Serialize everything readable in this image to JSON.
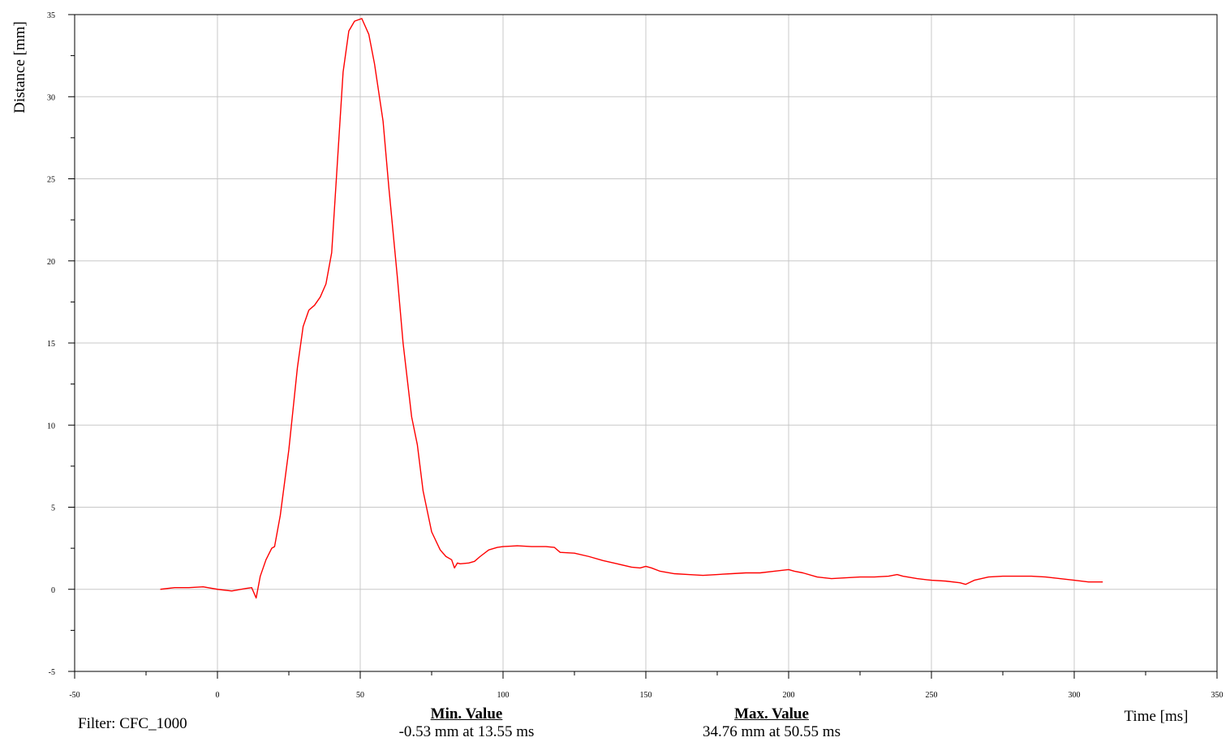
{
  "chart_data": {
    "type": "line",
    "title": "",
    "xlabel": "Time [ms]",
    "ylabel": "Distance [mm]",
    "xlim": [
      -50,
      350
    ],
    "ylim": [
      -5,
      35
    ],
    "x_ticks": [
      -50,
      0,
      50,
      100,
      150,
      200,
      250,
      300,
      350
    ],
    "y_ticks": [
      -5,
      0,
      5,
      10,
      15,
      20,
      25,
      30,
      35
    ],
    "grid": true,
    "line_color": "#ff0000",
    "series": [
      {
        "x": [
          -20,
          -15,
          -10,
          -5,
          0,
          5,
          10,
          12,
          13.55,
          15,
          17,
          19,
          20,
          22,
          25,
          28,
          30,
          32,
          34,
          36,
          38,
          40,
          42,
          44,
          46,
          48,
          50.55,
          53,
          55,
          58,
          60,
          63,
          65,
          68,
          70,
          72,
          75,
          78,
          80,
          82,
          83,
          84,
          85,
          88,
          90,
          92,
          95,
          98,
          100,
          105,
          110,
          115,
          118,
          120,
          125,
          130,
          135,
          140,
          145,
          148,
          150,
          152,
          155,
          160,
          165,
          170,
          175,
          180,
          185,
          190,
          195,
          200,
          202,
          205,
          210,
          215,
          220,
          225,
          230,
          235,
          238,
          240,
          245,
          250,
          255,
          260,
          262,
          265,
          270,
          275,
          280,
          285,
          290,
          295,
          300,
          305,
          310
        ],
        "y": [
          0.0,
          0.1,
          0.1,
          0.15,
          0.0,
          -0.1,
          0.05,
          0.1,
          -0.53,
          0.8,
          1.8,
          2.5,
          2.6,
          4.5,
          8.5,
          13.5,
          16.0,
          17.0,
          17.3,
          17.8,
          18.6,
          20.5,
          26.0,
          31.5,
          34.0,
          34.6,
          34.76,
          33.8,
          32.0,
          28.5,
          24.5,
          19.0,
          15.0,
          10.5,
          8.8,
          6.0,
          3.5,
          2.4,
          2.0,
          1.8,
          1.3,
          1.6,
          1.55,
          1.6,
          1.7,
          2.0,
          2.4,
          2.55,
          2.6,
          2.65,
          2.6,
          2.6,
          2.55,
          2.25,
          2.2,
          2.0,
          1.75,
          1.55,
          1.35,
          1.3,
          1.4,
          1.3,
          1.1,
          0.95,
          0.9,
          0.85,
          0.9,
          0.95,
          1.0,
          1.0,
          1.1,
          1.2,
          1.1,
          1.0,
          0.75,
          0.65,
          0.7,
          0.75,
          0.75,
          0.8,
          0.9,
          0.8,
          0.65,
          0.55,
          0.5,
          0.4,
          0.3,
          0.55,
          0.75,
          0.8,
          0.8,
          0.8,
          0.75,
          0.65,
          0.55,
          0.45,
          0.45
        ]
      }
    ]
  },
  "footer": {
    "filter": "Filter: CFC_1000",
    "min_title": "Min. Value",
    "min_detail": "-0.53 mm at 13.55 ms",
    "max_title": "Max. Value",
    "max_detail": "34.76 mm at 50.55 ms"
  }
}
